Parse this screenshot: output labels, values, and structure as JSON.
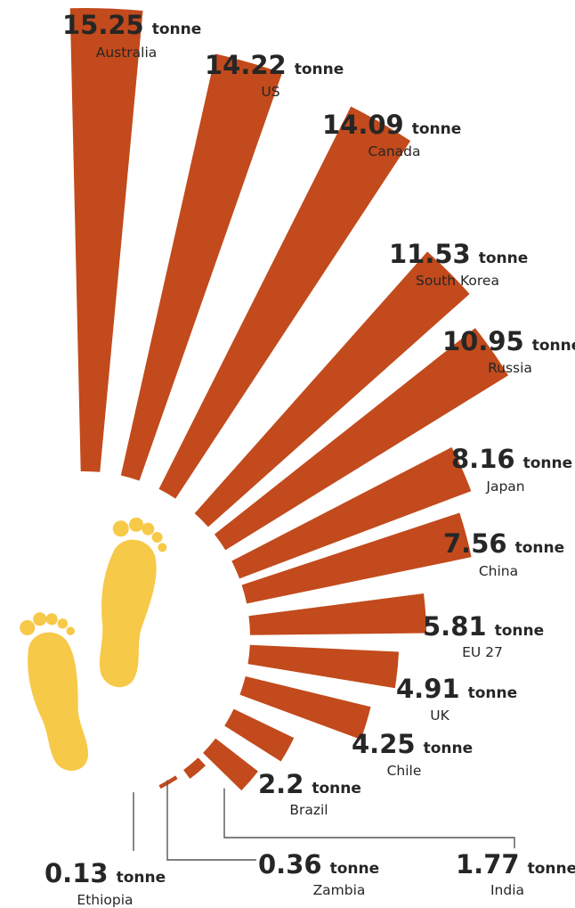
{
  "chart_data": {
    "type": "bar",
    "unit_label": "tonne",
    "categories": [
      "Australia",
      "US",
      "Canada",
      "South Korea",
      "Russia",
      "Japan",
      "China",
      "EU 27",
      "UK",
      "Chile",
      "Brazil",
      "India",
      "Zambia",
      "Ethiopia"
    ],
    "values": [
      15.25,
      14.22,
      14.09,
      11.53,
      10.95,
      8.16,
      7.56,
      5.81,
      4.91,
      4.25,
      2.2,
      1.77,
      0.36,
      0.13
    ],
    "value_labels": [
      "15.25",
      "14.22",
      "14.09",
      "11.53",
      "10.95",
      "8.16",
      "7.56",
      "5.81",
      "4.91",
      "4.25",
      "2.2",
      "1.77",
      "0.36",
      "0.13"
    ],
    "bar_color": "#c24a1c",
    "accent_color": "#f7c948",
    "icon": "footprints-icon"
  }
}
